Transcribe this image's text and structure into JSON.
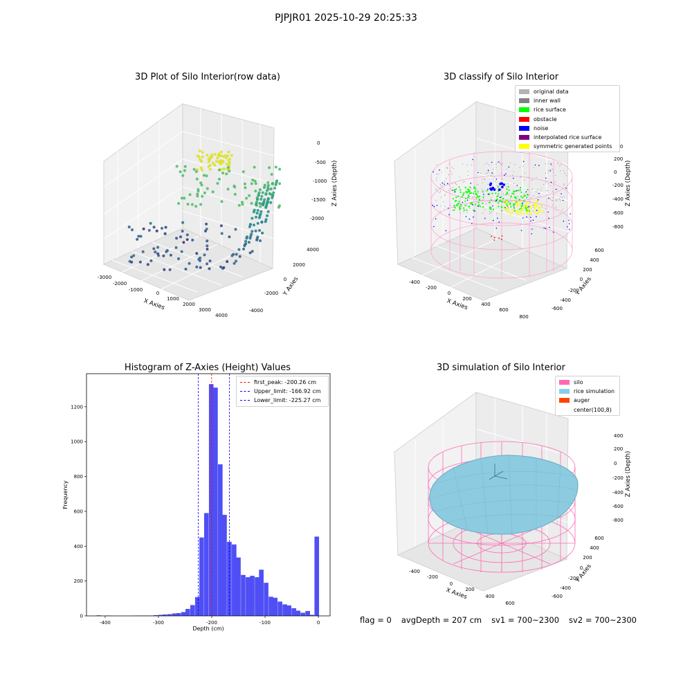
{
  "suptitle": "PJPJR01 2025-10-29 20:25:33",
  "panels": {
    "raw": {
      "title": "3D Plot of Silo Interior(row data)",
      "xlabel": "X Axies",
      "ylabel": "Y Axies",
      "zlabel": "Z Axies (Depth)",
      "xticks": [
        "-3000",
        "-2000",
        "-1000",
        "0",
        "1000",
        "2000",
        "3000",
        "4000"
      ],
      "yticks": [
        "-4000",
        "-2000",
        "0",
        "2000",
        "4000"
      ],
      "zticks": [
        "0",
        "-500",
        "-1000",
        "-1500",
        "-2000"
      ]
    },
    "classify": {
      "title": "3D classify of Silo Interior",
      "xlabel": "X Axies",
      "ylabel": "Y Axies",
      "zlabel": "Z Axies (Depth)",
      "xticks": [
        "-400",
        "-200",
        "0",
        "200",
        "400",
        "600",
        "800"
      ],
      "yticks": [
        "-600",
        "-400",
        "-200",
        "0",
        "200",
        "400",
        "600"
      ],
      "zticks": [
        "400",
        "200",
        "0",
        "-200",
        "-400",
        "-600",
        "-800"
      ],
      "legend": [
        {
          "label": "original data",
          "color": "#b3b3b3"
        },
        {
          "label": "inner wall",
          "color": "#808080"
        },
        {
          "label": "rice surface",
          "color": "#00ff00"
        },
        {
          "label": "obstacle",
          "color": "#ff0000"
        },
        {
          "label": "noise",
          "color": "#0000ff"
        },
        {
          "label": "interpolated rice surface",
          "color": "#800080"
        },
        {
          "label": "symmetric generated points",
          "color": "#ffff00"
        }
      ]
    },
    "simulation": {
      "title": "3D simulation of Silo Interior",
      "xlabel": "X Axies",
      "ylabel": "Y Axies",
      "zlabel": "Z Axies (Depth)",
      "xticks": [
        "-400",
        "-200",
        "0",
        "200",
        "400",
        "600"
      ],
      "yticks": [
        "-600",
        "-400",
        "-200",
        "0",
        "200",
        "400",
        "600"
      ],
      "zticks": [
        "400",
        "200",
        "0",
        "-200",
        "-400",
        "-600",
        "-800"
      ],
      "legend": [
        {
          "label": "silo",
          "color": "#ff69b4"
        },
        {
          "label": "rice simulation",
          "color": "#87ceeb"
        },
        {
          "label": "auger",
          "color": "#ff4500"
        },
        {
          "label": "center(100,8)",
          "color": ""
        }
      ]
    }
  },
  "stats": {
    "flag": "flag = 0",
    "avg": "avgDepth = 207 cm",
    "sv1": "sv1 = 700~2300",
    "sv2": "sv2 = 700~2300"
  },
  "chart_data": [
    {
      "type": "bar",
      "title": "Histogram of Z-Axies (Height) Values",
      "xlabel": "Depth (cm)",
      "ylabel": "Frequency",
      "xlim": [
        -435,
        22
      ],
      "ylim": [
        0,
        1390
      ],
      "xticks": [
        -400,
        -300,
        -200,
        -100,
        0
      ],
      "yticks": [
        0,
        200,
        400,
        600,
        800,
        1000,
        1200
      ],
      "bin_width": 8.6,
      "bars": [
        {
          "x": -412,
          "y": 3
        },
        {
          "x": -394,
          "y": 2
        },
        {
          "x": -340,
          "y": 2
        },
        {
          "x": -331,
          "y": 2
        },
        {
          "x": -322,
          "y": 2
        },
        {
          "x": -314,
          "y": 2
        },
        {
          "x": -305,
          "y": 4
        },
        {
          "x": -296,
          "y": 6
        },
        {
          "x": -288,
          "y": 8
        },
        {
          "x": -279,
          "y": 10
        },
        {
          "x": -270,
          "y": 14
        },
        {
          "x": -262,
          "y": 16
        },
        {
          "x": -253,
          "y": 22
        },
        {
          "x": -245,
          "y": 40
        },
        {
          "x": -236,
          "y": 62
        },
        {
          "x": -227,
          "y": 108
        },
        {
          "x": -219,
          "y": 450
        },
        {
          "x": -210,
          "y": 590
        },
        {
          "x": -201,
          "y": 1330
        },
        {
          "x": -193,
          "y": 1310
        },
        {
          "x": -184,
          "y": 870
        },
        {
          "x": -176,
          "y": 580
        },
        {
          "x": -167,
          "y": 425
        },
        {
          "x": -158,
          "y": 410
        },
        {
          "x": -150,
          "y": 335
        },
        {
          "x": -141,
          "y": 235
        },
        {
          "x": -132,
          "y": 222
        },
        {
          "x": -124,
          "y": 230
        },
        {
          "x": -115,
          "y": 222
        },
        {
          "x": -107,
          "y": 265
        },
        {
          "x": -98,
          "y": 190
        },
        {
          "x": -89,
          "y": 110
        },
        {
          "x": -81,
          "y": 104
        },
        {
          "x": -72,
          "y": 82
        },
        {
          "x": -63,
          "y": 66
        },
        {
          "x": -55,
          "y": 60
        },
        {
          "x": -46,
          "y": 44
        },
        {
          "x": -38,
          "y": 30
        },
        {
          "x": -29,
          "y": 18
        },
        {
          "x": -20,
          "y": 28
        },
        {
          "x": -12,
          "y": 6
        },
        {
          "x": -3,
          "y": 455
        }
      ],
      "lines": [
        {
          "label": "first_peak: -200.26 cm",
          "x": -200.26,
          "color": "#ff0000"
        },
        {
          "label": "Upper_limit: -166.92 cm",
          "x": -166.92,
          "color": "#0000ff"
        },
        {
          "label": "Lower_limit: -225.27 cm",
          "x": -225.27,
          "color": "#0000ff"
        }
      ],
      "bar_color": "#4f4ff5",
      "legend_position": "top-right"
    }
  ]
}
